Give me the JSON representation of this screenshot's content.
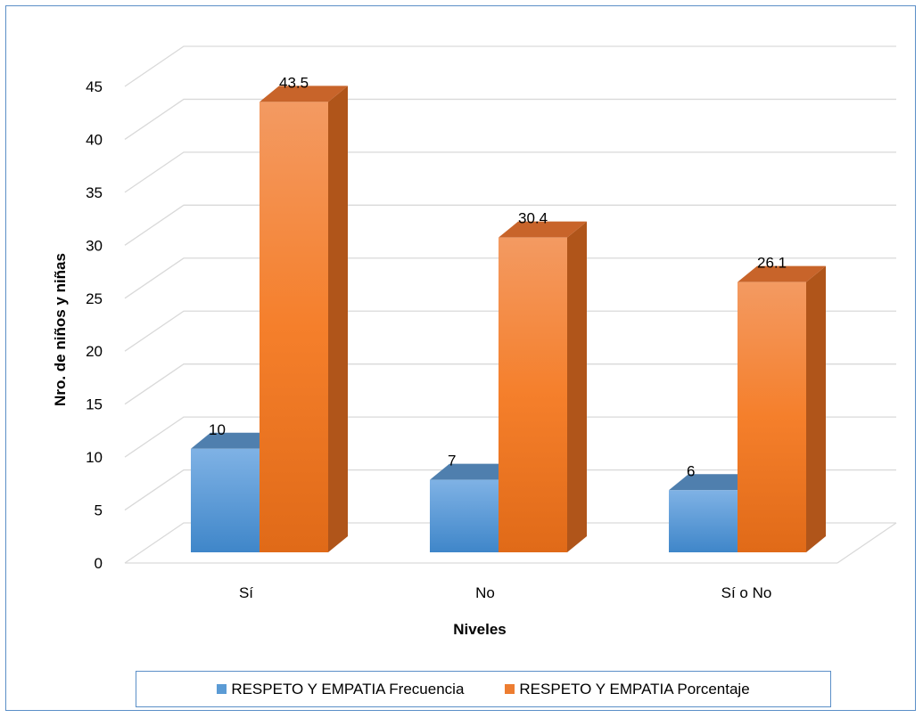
{
  "chart_data": {
    "type": "bar",
    "style": "3d-clustered-column",
    "categories": [
      "Sí",
      "No",
      "Sí o No"
    ],
    "series": [
      {
        "name": "RESPETO Y EMPATIA Frecuencia",
        "values": [
          10,
          7,
          6
        ],
        "color": "#5b9bd5"
      },
      {
        "name": "RESPETO Y EMPATIA Porcentaje",
        "values": [
          43.5,
          30.4,
          26.1
        ],
        "color": "#ed7d31"
      }
    ],
    "data_labels": [
      [
        "10",
        "7",
        "6"
      ],
      [
        "43.5",
        "30.4",
        "26.1"
      ]
    ],
    "xlabel": "Niveles",
    "ylabel": "Nro. de niños y niñas",
    "ylim": [
      0,
      45
    ],
    "yticks": [
      "0",
      "5",
      "10",
      "15",
      "20",
      "25",
      "30",
      "35",
      "40",
      "45"
    ],
    "grid": true,
    "legend_position": "bottom"
  }
}
